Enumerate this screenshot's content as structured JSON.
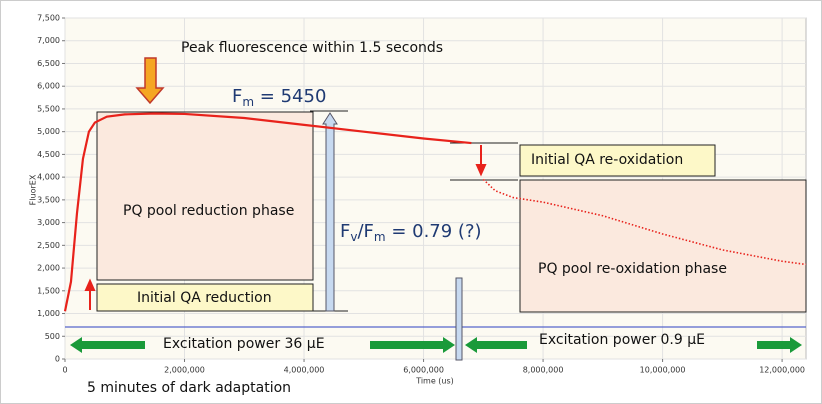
{
  "chart_data": {
    "type": "line",
    "x_label": "Time (us)",
    "y_label": "FluorEX",
    "xlim": [
      0,
      12400000
    ],
    "ylim": [
      0,
      7500
    ],
    "xticks": [
      0,
      {
        "value": 2000000,
        "label": "2,000,000"
      },
      {
        "value": 4000000,
        "label": "4,000,000"
      },
      {
        "value": 6000000,
        "label": "6,000,000"
      },
      {
        "value": 8000000,
        "label": "8,000,000"
      },
      {
        "value": 10000000,
        "label": "10,000,000"
      },
      {
        "value": 12000000,
        "label": "12,000,000"
      }
    ],
    "yticks": [
      0,
      500,
      {
        "value": 1000,
        "label": "1,000"
      },
      {
        "value": 1500,
        "label": "1,500"
      },
      {
        "value": 2000,
        "label": "2,000"
      },
      {
        "value": 2500,
        "label": "2,500"
      },
      {
        "value": 3000,
        "label": "3,000"
      },
      {
        "value": 3500,
        "label": "3,500"
      },
      {
        "value": 4000,
        "label": "4,000"
      },
      {
        "value": 4500,
        "label": "4,500"
      },
      {
        "value": 5000,
        "label": "5,000"
      },
      {
        "value": 5500,
        "label": "5,500"
      },
      {
        "value": 6000,
        "label": "6,000"
      },
      {
        "value": 6500,
        "label": "6,500"
      },
      {
        "value": 7000,
        "label": "7,000"
      },
      {
        "value": 7500,
        "label": "7,500"
      }
    ],
    "grid": true,
    "series": [
      {
        "color": "#e8221b",
        "style": "solid",
        "x": [
          0,
          100000,
          200000,
          300000,
          400000,
          500000,
          700000,
          1000000,
          1500000,
          2000000,
          3000000,
          4000000,
          5000000,
          6000000,
          6800000
        ],
        "values": [
          1050,
          1700,
          3200,
          4400,
          5000,
          5200,
          5330,
          5380,
          5400,
          5390,
          5300,
          5150,
          5000,
          4850,
          4750
        ]
      },
      {
        "color": "#e8221b",
        "style": "dotted",
        "x": [
          7000000,
          7200000,
          7500000,
          8000000,
          9000000,
          10000000,
          11000000,
          12000000,
          12400000
        ],
        "values": [
          3950,
          3700,
          3550,
          3450,
          3150,
          2750,
          2400,
          2150,
          2080
        ]
      }
    ],
    "annotations": {
      "peak": "Peak fluorescence within 1.5 seconds",
      "fm": {
        "base": "F",
        "sub": "m",
        "rest": " = 5450"
      },
      "fvfm": {
        "base": "F",
        "sub": "v",
        "mid": "/F",
        "sub2": "m",
        "rest": " = 0.79 (?)"
      },
      "pq_reduction": "PQ pool reduction phase",
      "qa_reduction": "Initial QA reduction",
      "qa_reoxidation": "Initial QA re-oxidation",
      "pq_reoxidation": "PQ pool re-oxidation phase",
      "power_high": "Excitation power 36 µE",
      "power_low": "Excitation power 0.9 µE",
      "dark": "5 minutes of dark adaptation"
    }
  }
}
